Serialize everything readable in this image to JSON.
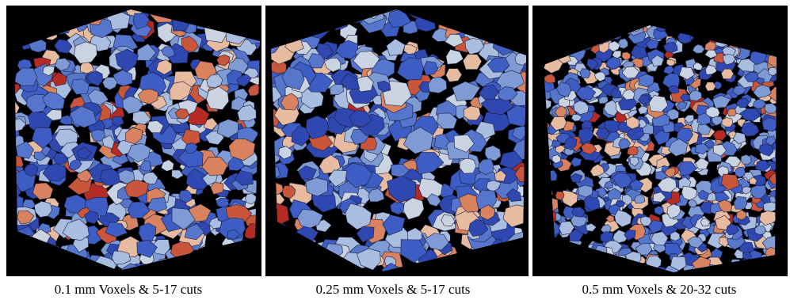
{
  "panels": [
    {
      "caption": "0.1 mm Voxels & 5-17 cuts"
    },
    {
      "caption": "0.25 mm Voxels & 5-17 cuts"
    },
    {
      "caption": "0.5 mm Voxels & 20-32 cuts"
    }
  ]
}
